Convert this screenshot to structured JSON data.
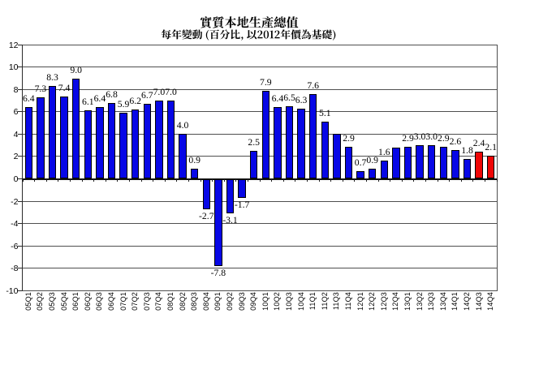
{
  "chart_data": {
    "type": "bar",
    "title": "實質本地生產總值",
    "subtitle": "每年變動 (百分比, 以2012年價為基礎)",
    "categories": [
      "05Q1",
      "05Q2",
      "05Q3",
      "05Q4",
      "06Q1",
      "06Q2",
      "06Q3",
      "06Q4",
      "07Q1",
      "07Q2",
      "07Q3",
      "07Q4",
      "08Q1",
      "08Q2",
      "08Q3",
      "08Q4",
      "09Q1",
      "09Q2",
      "09Q3",
      "09Q4",
      "10Q1",
      "10Q2",
      "10Q3",
      "10Q4",
      "11Q1",
      "11Q2",
      "11Q3",
      "11Q4",
      "12Q1",
      "12Q2",
      "12Q3",
      "12Q4",
      "13Q1",
      "13Q2",
      "13Q3",
      "13Q4",
      "14Q1",
      "14Q2",
      "14Q3",
      "14Q4"
    ],
    "values": [
      6.4,
      7.3,
      8.3,
      7.4,
      9.0,
      6.1,
      6.4,
      6.8,
      5.9,
      6.2,
      6.7,
      7.0,
      7.0,
      4.0,
      0.9,
      -2.7,
      -7.8,
      -3.1,
      -1.7,
      2.5,
      7.9,
      6.4,
      6.5,
      6.3,
      7.6,
      5.1,
      4.0,
      2.9,
      0.7,
      0.9,
      1.6,
      2.8,
      2.9,
      3.0,
      3.0,
      2.9,
      2.6,
      1.8,
      2.4,
      2.1
    ],
    "bar_labels": [
      "6.4",
      "7.3",
      "8.3",
      "7.4",
      "9.0",
      "6.1",
      "6.4",
      "6.8",
      "5.9",
      "6.2",
      "6.7",
      "7.0",
      "7.0",
      "4.0",
      "0.9",
      "-2.7",
      "-7.8",
      "-3.1",
      "-1.7",
      "2.5",
      "7.9",
      "6.4",
      "6.5",
      "6.3",
      "7.6",
      "5.1",
      null,
      "2.9",
      "0.7",
      "0.9",
      "1.6",
      null,
      "2.9",
      "3.0",
      "3.0",
      "2.9",
      "2.6",
      "1.8",
      "2.4",
      "2.1"
    ],
    "ylim": [
      -10,
      12
    ],
    "yticks": [
      12,
      10,
      8,
      6,
      4,
      2,
      0,
      -2,
      -4,
      -6,
      -8,
      -10
    ],
    "grid": true,
    "legend": null,
    "colors": {
      "bar_fill": "#0707e6",
      "bar_highlight_fill": "#ee0606",
      "bar_border": "#000000",
      "gridline": "#4f4f4f",
      "zero_line": "#111111",
      "text": "#000000"
    },
    "highlight_categories": [
      "14Q3",
      "14Q4"
    ]
  }
}
